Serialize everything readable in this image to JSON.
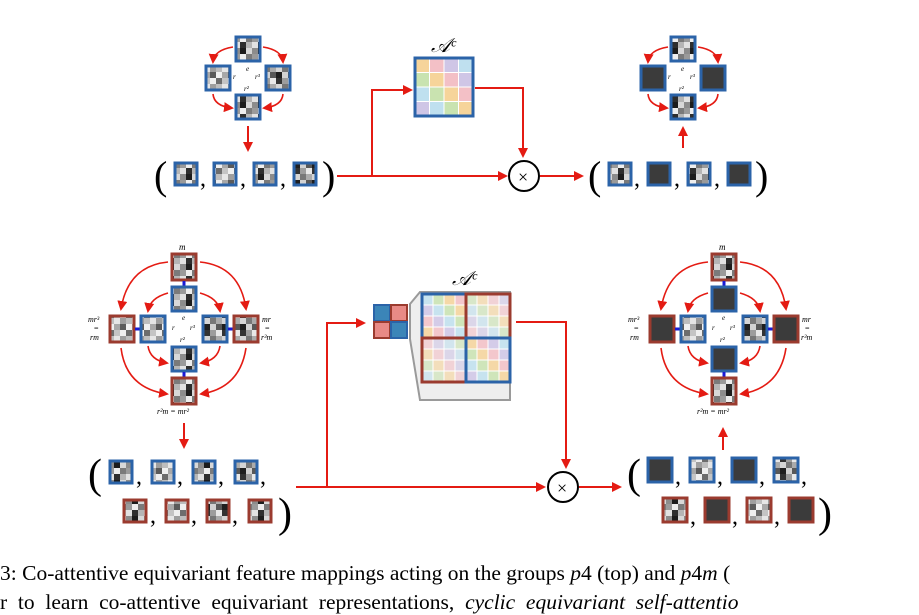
{
  "figure": {
    "matrix_label": "𝒜ᶜ",
    "multiply_symbol": "×",
    "paren_open": "(",
    "paren_close": ")",
    "comma": ",",
    "colors": {
      "arrow": "#e41b13",
      "rotation_frame": "#2b63a8",
      "mirror_frame": "#9b3b2f",
      "link": "#1a1ad6",
      "muted_cell": "#3b3b3b",
      "attention_palette": [
        "#f6d49a",
        "#bfe0ef",
        "#f3c0c6",
        "#c9e3b0",
        "#cfc6e6"
      ]
    },
    "p4_top": {
      "group_elements": [
        "e",
        "r",
        "r³",
        "r²"
      ]
    },
    "p4m_bottom": {
      "group_elements": [
        "m",
        "e",
        "r",
        "r³",
        "r²"
      ],
      "label_left": [
        "mr³",
        "=",
        "rm"
      ],
      "label_right": [
        "mr",
        "=",
        "r³m"
      ],
      "label_bottom": "r²m = mr²"
    }
  },
  "caption": {
    "line1_pre": "3: Co-attentive equivariant feature mappings acting on the groups ",
    "line1_g1": "p",
    "line1_g1b": "4",
    "line1_mid": " (top) and ",
    "line1_g2": "p",
    "line1_g2b": "4",
    "line1_g2c": "m",
    "line1_post": " (",
    "line2_pre": "r  to  learn  co-attentive  equivariant  representations,  ",
    "line2_ital": "cyclic  equivariant  self-attentio"
  }
}
